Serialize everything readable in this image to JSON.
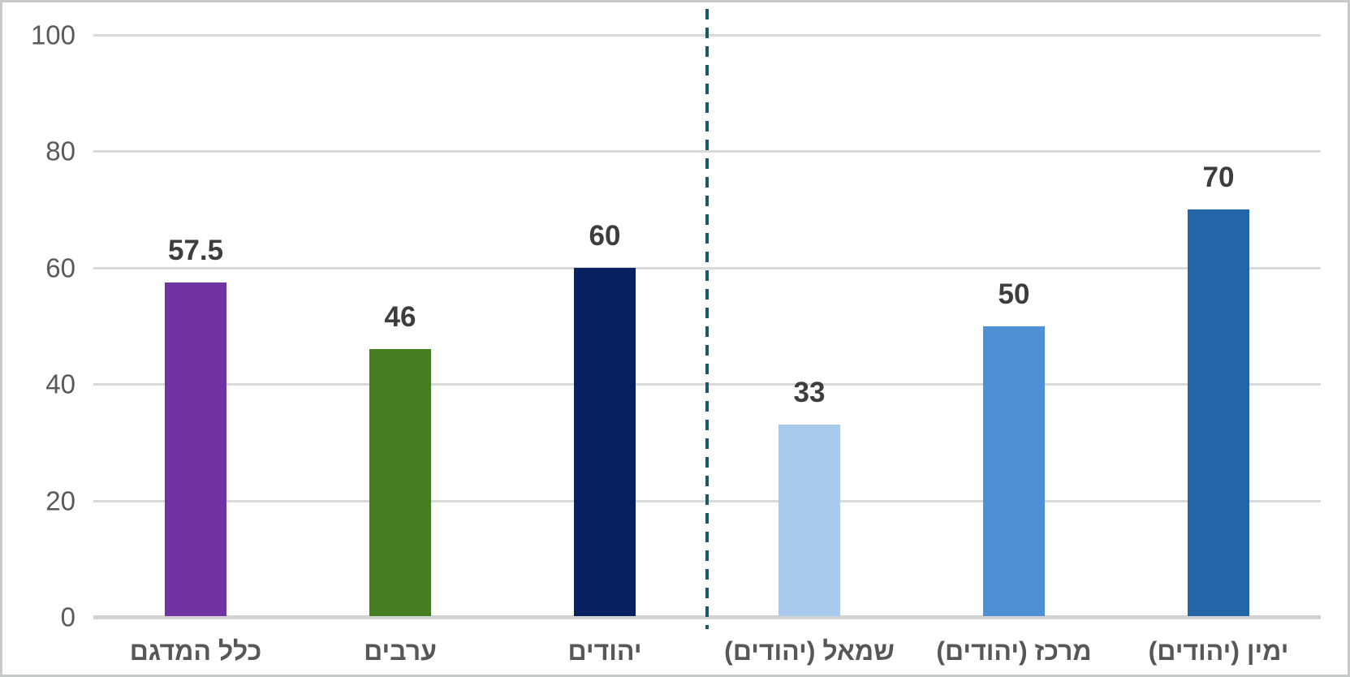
{
  "chart_data": {
    "type": "bar",
    "direction": "rtl",
    "title": "",
    "xlabel": "",
    "ylabel": "",
    "categories": [
      "כלל המדגם",
      "ערבים",
      "יהודים",
      "שמאל (יהודים)",
      "מרכז (יהודים)",
      "ימין (יהודים)"
    ],
    "category_slugs": [
      "total-sample",
      "arabs",
      "jews",
      "left-jews",
      "center-jews",
      "right-jews"
    ],
    "values": [
      57.5,
      46,
      60,
      33,
      50,
      70
    ],
    "value_labels": [
      "57.5",
      "46",
      "60",
      "33",
      "50",
      "70"
    ],
    "bar_colors": [
      "#7132a3",
      "#457e21",
      "#0a2161",
      "#a8caec",
      "#4d90d5",
      "#2266a7"
    ],
    "ylim": [
      0,
      100
    ],
    "yticks": [
      0,
      20,
      40,
      60,
      80,
      100
    ],
    "grid": true,
    "legend": false,
    "separator": {
      "after_category_index": 2,
      "style": "dashed",
      "color": "#1d5867"
    }
  },
  "style": {
    "gridline_color": "#d9d9d9",
    "axis_line_color": "#d2d2d2",
    "tick_label_color": "#595959",
    "value_label_color": "#3d3d3d",
    "category_label_color": "#575757",
    "frame_border_color": "#c7caca",
    "background_color": "#ffffff"
  }
}
